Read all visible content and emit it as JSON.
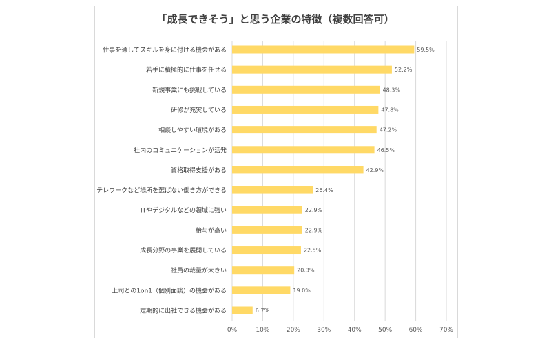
{
  "chart_data": {
    "type": "bar",
    "orientation": "horizontal",
    "title": "「成長できそう」と思う企業の特徴（複数回答可）",
    "categories": [
      "仕事を通してスキルを身に付ける機会がある",
      "若手に積極的に仕事を任せる",
      "新規事業にも挑戦している",
      "研修が充実している",
      "相談しやすい環境がある",
      "社内のコミュニケーションが活発",
      "資格取得支援がある",
      "テレワークなど場所を選ばない働き方ができる",
      "ITやデジタルなどの領域に強い",
      "給与が高い",
      "成長分野の事業を展開している",
      "社員の裁量が大きい",
      "上司との1on1（個別面談）の機会がある",
      "定期的に出社できる機会がある"
    ],
    "values": [
      59.5,
      52.2,
      48.3,
      47.8,
      47.2,
      46.5,
      42.9,
      26.4,
      22.9,
      22.9,
      22.5,
      20.3,
      19.0,
      6.7
    ],
    "value_labels": [
      "59.5%",
      "52.2%",
      "48.3%",
      "47.8%",
      "47.2%",
      "46.5%",
      "42.9%",
      "26.4%",
      "22.9%",
      "22.9%",
      "22.5%",
      "20.3%",
      "19.0%",
      "6.7%"
    ],
    "xlim": [
      0,
      70
    ],
    "ticks": [
      0,
      10,
      20,
      30,
      40,
      50,
      60,
      70
    ],
    "tick_labels": [
      "0%",
      "10%",
      "20%",
      "30%",
      "40%",
      "50%",
      "60%",
      "70%"
    ],
    "grid": true,
    "bar_color": "#FFD966",
    "grid_color": "#d9d9d9"
  }
}
